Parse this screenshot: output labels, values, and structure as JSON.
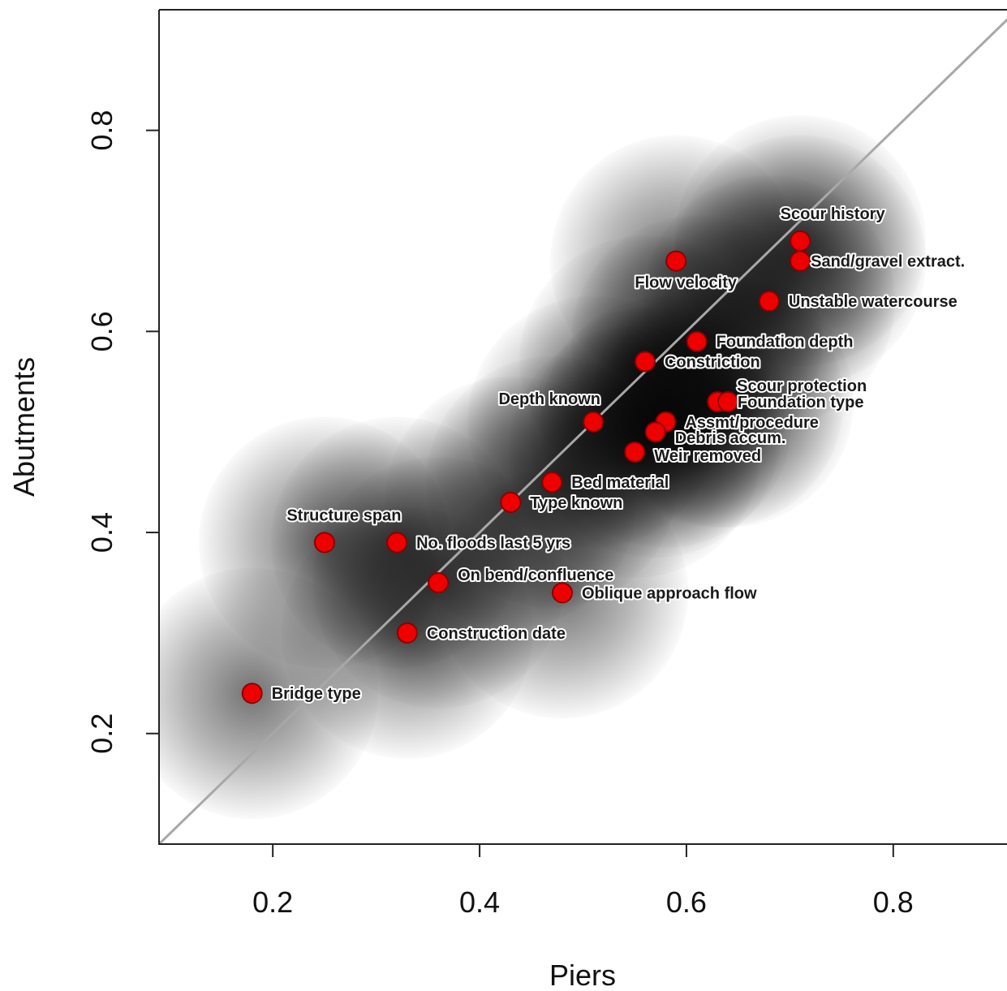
{
  "chart_data": {
    "type": "scatter",
    "xlabel": "Piers",
    "ylabel": "Abutments",
    "xlim": [
      0.09,
      0.91
    ],
    "ylim": [
      0.09,
      0.92
    ],
    "x_ticks": [
      "0.2",
      "0.4",
      "0.6",
      "0.8"
    ],
    "y_ticks": [
      "0.2",
      "0.4",
      "0.6",
      "0.8"
    ],
    "reference_line": "y = x",
    "marker_color": "#ee0000",
    "points": [
      {
        "label": "Scour history",
        "x": 0.71,
        "y": 0.69
      },
      {
        "label": "Sand/gravel extract.",
        "x": 0.71,
        "y": 0.67
      },
      {
        "label": "Flow velocity",
        "x": 0.59,
        "y": 0.67
      },
      {
        "label": "Unstable watercourse",
        "x": 0.68,
        "y": 0.63
      },
      {
        "label": "Foundation depth",
        "x": 0.61,
        "y": 0.59
      },
      {
        "label": "Constriction",
        "x": 0.56,
        "y": 0.57
      },
      {
        "label": "Scour protection",
        "x": 0.63,
        "y": 0.53
      },
      {
        "label": "Foundation type",
        "x": 0.64,
        "y": 0.53
      },
      {
        "label": "Depth known",
        "x": 0.51,
        "y": 0.51
      },
      {
        "label": "Assmt/procedure",
        "x": 0.58,
        "y": 0.51
      },
      {
        "label": "Debris accum.",
        "x": 0.57,
        "y": 0.5
      },
      {
        "label": "Weir removed",
        "x": 0.55,
        "y": 0.48
      },
      {
        "label": "Bed material",
        "x": 0.47,
        "y": 0.45
      },
      {
        "label": "Type known",
        "x": 0.43,
        "y": 0.43
      },
      {
        "label": "Structure span",
        "x": 0.25,
        "y": 0.39
      },
      {
        "label": "No. floods last 5 yrs",
        "x": 0.32,
        "y": 0.39
      },
      {
        "label": "On bend/confluence",
        "x": 0.36,
        "y": 0.35
      },
      {
        "label": "Oblique approach flow",
        "x": 0.48,
        "y": 0.34
      },
      {
        "label": "Construction date",
        "x": 0.33,
        "y": 0.3
      },
      {
        "label": "Bridge type",
        "x": 0.18,
        "y": 0.24
      }
    ]
  }
}
